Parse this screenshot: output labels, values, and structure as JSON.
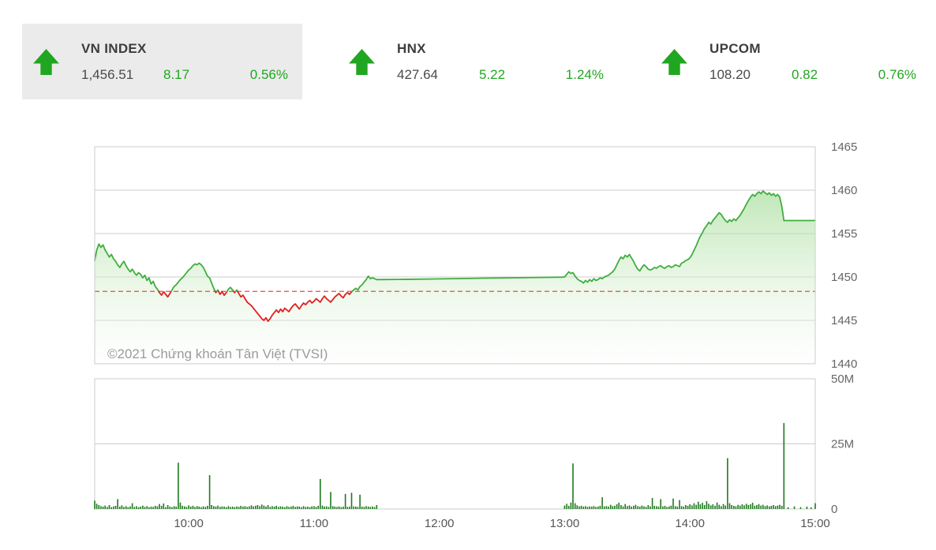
{
  "indices": [
    {
      "name": "VN INDEX",
      "value": "1,456.51",
      "change": "8.17",
      "percent": "0.56%",
      "highlighted": true
    },
    {
      "name": "HNX",
      "value": "427.64",
      "change": "5.22",
      "percent": "1.24%",
      "highlighted": false
    },
    {
      "name": "UPCOM",
      "value": "108.20",
      "change": "0.82",
      "percent": "0.76%",
      "highlighted": false
    }
  ],
  "watermark": "©2021 Chứng khoán Tân Việt (TVSI)",
  "colors": {
    "up_green": "#21a621",
    "arrow_green": "#25b125",
    "card_bg": "#ebebeb",
    "line_green": "#3fae3f",
    "line_red": "#e02020",
    "ref_red": "#e0504a",
    "vol_green": "#1e7a1e",
    "grid": "#cccccc",
    "axis_text": "#666666",
    "x_axis_text": "#555555",
    "watermark_text": "#9b9b9b",
    "fill_top": "#8fd47f",
    "fill_bottom": "#ffffff"
  },
  "chart_data": {
    "type": "area",
    "title": "VN INDEX intraday price and volume",
    "x_axis": {
      "domain": [
        555,
        900
      ],
      "ticks": [
        {
          "t": 600,
          "label": "10:00"
        },
        {
          "t": 660,
          "label": "11:00"
        },
        {
          "t": 720,
          "label": "12:00"
        },
        {
          "t": 780,
          "label": "13:00"
        },
        {
          "t": 840,
          "label": "14:00"
        },
        {
          "t": 900,
          "label": "15:00"
        }
      ]
    },
    "price_axis": {
      "domain": [
        1440,
        1465
      ],
      "ticks": [
        1465,
        1460,
        1455,
        1450,
        1445,
        1440
      ]
    },
    "volume_axis": {
      "domain": [
        0,
        50
      ],
      "ticks": [
        {
          "v": 50,
          "label": "50M"
        },
        {
          "v": 25,
          "label": "25M"
        },
        {
          "v": 0,
          "label": "0"
        }
      ]
    },
    "reference_value": 1448.34,
    "close_value": 1456.51,
    "points": [
      [
        555,
        1451.9,
        3.2
      ],
      [
        556,
        1453.1,
        2.0
      ],
      [
        557,
        1453.8,
        1.5
      ],
      [
        558,
        1453.4,
        1.1
      ],
      [
        559,
        1453.7,
        0.9
      ],
      [
        560,
        1453.1,
        1.3
      ],
      [
        561,
        1452.7,
        0.8
      ],
      [
        562,
        1452.3,
        1.5
      ],
      [
        563,
        1452.6,
        0.7
      ],
      [
        564,
        1452.1,
        1.0
      ],
      [
        565,
        1451.8,
        1.2
      ],
      [
        566,
        1451.4,
        3.8
      ],
      [
        567,
        1451.1,
        0.9
      ],
      [
        568,
        1451.5,
        1.4
      ],
      [
        569,
        1451.8,
        0.8
      ],
      [
        570,
        1451.3,
        1.1
      ],
      [
        571,
        1450.9,
        0.7
      ],
      [
        572,
        1450.6,
        1.0
      ],
      [
        573,
        1450.9,
        2.2
      ],
      [
        574,
        1450.5,
        0.8
      ],
      [
        575,
        1450.2,
        1.1
      ],
      [
        576,
        1450.5,
        0.7
      ],
      [
        577,
        1450.3,
        0.9
      ],
      [
        578,
        1449.9,
        1.3
      ],
      [
        579,
        1450.2,
        0.8
      ],
      [
        580,
        1449.6,
        1.1
      ],
      [
        581,
        1449.9,
        0.7
      ],
      [
        582,
        1449.2,
        0.9
      ],
      [
        583,
        1449.5,
        0.8
      ],
      [
        584,
        1448.9,
        1.2
      ],
      [
        585,
        1448.6,
        1.0
      ],
      [
        586,
        1448.2,
        1.9
      ],
      [
        587,
        1447.9,
        1.2
      ],
      [
        588,
        1448.3,
        2.1
      ],
      [
        589,
        1448.0,
        0.7
      ],
      [
        590,
        1447.7,
        1.5
      ],
      [
        591,
        1448.1,
        0.9
      ],
      [
        592,
        1448.5,
        0.7
      ],
      [
        593,
        1448.9,
        1.1
      ],
      [
        594,
        1449.1,
        0.9
      ],
      [
        595,
        1449.4,
        17.8
      ],
      [
        596,
        1449.7,
        2.5
      ],
      [
        597,
        1449.9,
        1.2
      ],
      [
        598,
        1450.2,
        1.0
      ],
      [
        599,
        1450.5,
        0.8
      ],
      [
        600,
        1450.8,
        1.4
      ],
      [
        601,
        1451.0,
        0.9
      ],
      [
        602,
        1451.3,
        1.2
      ],
      [
        603,
        1451.5,
        0.8
      ],
      [
        604,
        1451.4,
        1.1
      ],
      [
        605,
        1451.6,
        0.9
      ],
      [
        606,
        1451.4,
        0.7
      ],
      [
        607,
        1451.1,
        1.0
      ],
      [
        608,
        1450.6,
        0.8
      ],
      [
        609,
        1450.1,
        1.2
      ],
      [
        610,
        1449.9,
        13.0
      ],
      [
        611,
        1449.3,
        1.5
      ],
      [
        612,
        1448.7,
        1.1
      ],
      [
        613,
        1448.2,
        0.9
      ],
      [
        614,
        1448.5,
        1.3
      ],
      [
        615,
        1448.0,
        0.8
      ],
      [
        616,
        1448.3,
        1.0
      ],
      [
        617,
        1447.9,
        0.9
      ],
      [
        618,
        1448.2,
        0.7
      ],
      [
        619,
        1448.6,
        1.1
      ],
      [
        620,
        1448.8,
        0.8
      ],
      [
        621,
        1448.5,
        0.9
      ],
      [
        622,
        1448.2,
        0.7
      ],
      [
        623,
        1448.5,
        1.0
      ],
      [
        624,
        1448.1,
        0.8
      ],
      [
        625,
        1447.7,
        1.2
      ],
      [
        626,
        1447.9,
        0.9
      ],
      [
        627,
        1447.5,
        1.1
      ],
      [
        628,
        1447.1,
        0.8
      ],
      [
        629,
        1446.9,
        1.0
      ],
      [
        630,
        1446.7,
        1.4
      ],
      [
        631,
        1446.4,
        1.0
      ],
      [
        632,
        1446.1,
        1.2
      ],
      [
        633,
        1445.8,
        1.5
      ],
      [
        634,
        1445.5,
        1.1
      ],
      [
        635,
        1445.2,
        1.7
      ],
      [
        636,
        1445.0,
        1.3
      ],
      [
        637,
        1445.3,
        0.9
      ],
      [
        638,
        1444.9,
        1.5
      ],
      [
        639,
        1445.2,
        0.8
      ],
      [
        640,
        1445.6,
        1.1
      ],
      [
        641,
        1445.9,
        0.9
      ],
      [
        642,
        1446.2,
        1.2
      ],
      [
        643,
        1445.9,
        0.8
      ],
      [
        644,
        1446.3,
        1.0
      ],
      [
        645,
        1446.0,
        0.9
      ],
      [
        646,
        1446.4,
        0.7
      ],
      [
        647,
        1446.2,
        1.1
      ],
      [
        648,
        1446.0,
        0.8
      ],
      [
        649,
        1446.4,
        0.9
      ],
      [
        650,
        1446.7,
        1.2
      ],
      [
        651,
        1446.9,
        0.8
      ],
      [
        652,
        1446.6,
        1.0
      ],
      [
        653,
        1446.3,
        0.9
      ],
      [
        654,
        1446.7,
        0.7
      ],
      [
        655,
        1447.0,
        1.1
      ],
      [
        656,
        1446.8,
        0.8
      ],
      [
        657,
        1447.1,
        0.9
      ],
      [
        658,
        1447.3,
        0.7
      ],
      [
        659,
        1447.0,
        1.0
      ],
      [
        660,
        1447.2,
        1.1
      ],
      [
        661,
        1447.5,
        0.8
      ],
      [
        662,
        1447.3,
        1.2
      ],
      [
        663,
        1447.1,
        11.5
      ],
      [
        664,
        1447.5,
        1.3
      ],
      [
        665,
        1447.8,
        0.9
      ],
      [
        666,
        1447.5,
        1.0
      ],
      [
        667,
        1447.3,
        0.8
      ],
      [
        668,
        1447.1,
        6.5
      ],
      [
        669,
        1447.4,
        1.1
      ],
      [
        670,
        1447.7,
        0.9
      ],
      [
        671,
        1447.9,
        0.8
      ],
      [
        672,
        1448.1,
        1.0
      ],
      [
        673,
        1447.8,
        0.7
      ],
      [
        674,
        1447.6,
        0.9
      ],
      [
        675,
        1448.0,
        5.8
      ],
      [
        676,
        1448.2,
        0.8
      ],
      [
        677,
        1448.0,
        0.9
      ],
      [
        678,
        1448.3,
        6.2
      ],
      [
        679,
        1448.5,
        1.0
      ],
      [
        680,
        1448.7,
        0.9
      ],
      [
        681,
        1448.5,
        0.8
      ],
      [
        682,
        1448.9,
        5.5
      ],
      [
        683,
        1449.1,
        0.9
      ],
      [
        684,
        1449.4,
        0.8
      ],
      [
        685,
        1449.7,
        1.1
      ],
      [
        686,
        1450.1,
        0.9
      ],
      [
        687,
        1449.8,
        0.8
      ],
      [
        688,
        1449.9,
        1.0
      ],
      [
        689,
        1449.8,
        0.7
      ],
      [
        690,
        1449.7,
        1.5
      ],
      [
        700,
        1449.72,
        0
      ],
      [
        715,
        1449.76,
        0
      ],
      [
        730,
        1449.82,
        0
      ],
      [
        745,
        1449.87,
        0
      ],
      [
        760,
        1449.92,
        0
      ],
      [
        779,
        1449.98,
        0
      ],
      [
        780,
        1450.0,
        1.3
      ],
      [
        781,
        1450.3,
        2.0
      ],
      [
        782,
        1450.6,
        1.2
      ],
      [
        783,
        1450.4,
        2.5
      ],
      [
        784,
        1450.5,
        17.5
      ],
      [
        785,
        1450.1,
        2.2
      ],
      [
        786,
        1449.8,
        1.4
      ],
      [
        787,
        1449.6,
        1.0
      ],
      [
        788,
        1449.5,
        1.2
      ],
      [
        789,
        1449.3,
        0.9
      ],
      [
        790,
        1449.6,
        1.1
      ],
      [
        791,
        1449.4,
        0.8
      ],
      [
        792,
        1449.7,
        1.0
      ],
      [
        793,
        1449.5,
        0.9
      ],
      [
        794,
        1449.8,
        1.1
      ],
      [
        795,
        1449.6,
        0.8
      ],
      [
        796,
        1449.7,
        0.9
      ],
      [
        797,
        1449.9,
        1.2
      ],
      [
        798,
        1449.8,
        4.5
      ],
      [
        799,
        1450.0,
        1.0
      ],
      [
        800,
        1450.1,
        1.1
      ],
      [
        801,
        1450.2,
        0.9
      ],
      [
        802,
        1450.4,
        1.6
      ],
      [
        803,
        1450.6,
        1.1
      ],
      [
        804,
        1450.9,
        1.2
      ],
      [
        805,
        1451.4,
        1.8
      ],
      [
        806,
        1451.9,
        2.4
      ],
      [
        807,
        1452.3,
        1.5
      ],
      [
        808,
        1452.1,
        1.0
      ],
      [
        809,
        1452.5,
        1.9
      ],
      [
        810,
        1452.3,
        1.1
      ],
      [
        811,
        1452.6,
        1.4
      ],
      [
        812,
        1452.2,
        0.9
      ],
      [
        813,
        1451.8,
        1.2
      ],
      [
        814,
        1451.3,
        1.6
      ],
      [
        815,
        1450.9,
        1.1
      ],
      [
        816,
        1450.7,
        0.9
      ],
      [
        817,
        1451.1,
        1.3
      ],
      [
        818,
        1451.4,
        1.0
      ],
      [
        819,
        1451.2,
        0.8
      ],
      [
        820,
        1450.9,
        1.5
      ],
      [
        821,
        1450.8,
        1.0
      ],
      [
        822,
        1450.9,
        4.2
      ],
      [
        823,
        1451.1,
        1.2
      ],
      [
        824,
        1451.0,
        1.1
      ],
      [
        825,
        1451.2,
        0.9
      ],
      [
        826,
        1451.3,
        3.8
      ],
      [
        827,
        1451.1,
        1.0
      ],
      [
        828,
        1451.0,
        1.2
      ],
      [
        829,
        1451.2,
        0.8
      ],
      [
        830,
        1451.3,
        1.0
      ],
      [
        831,
        1451.1,
        1.3
      ],
      [
        832,
        1451.2,
        4.0
      ],
      [
        833,
        1451.4,
        1.1
      ],
      [
        834,
        1451.3,
        0.9
      ],
      [
        835,
        1451.2,
        3.4
      ],
      [
        836,
        1451.6,
        1.1
      ],
      [
        837,
        1451.7,
        0.9
      ],
      [
        838,
        1451.9,
        1.5
      ],
      [
        839,
        1452.0,
        1.2
      ],
      [
        840,
        1452.2,
        1.8
      ],
      [
        841,
        1452.6,
        1.4
      ],
      [
        842,
        1453.1,
        2.2
      ],
      [
        843,
        1453.6,
        1.6
      ],
      [
        844,
        1454.2,
        2.8
      ],
      [
        845,
        1454.7,
        1.8
      ],
      [
        846,
        1455.1,
        2.4
      ],
      [
        847,
        1455.6,
        1.5
      ],
      [
        848,
        1455.9,
        3.0
      ],
      [
        849,
        1456.3,
        2.0
      ],
      [
        850,
        1456.1,
        1.4
      ],
      [
        851,
        1456.5,
        1.8
      ],
      [
        852,
        1456.8,
        1.2
      ],
      [
        853,
        1457.1,
        2.5
      ],
      [
        854,
        1457.4,
        1.6
      ],
      [
        855,
        1457.2,
        1.1
      ],
      [
        856,
        1456.8,
        1.9
      ],
      [
        857,
        1456.5,
        1.3
      ],
      [
        858,
        1456.3,
        19.5
      ],
      [
        859,
        1456.6,
        2.2
      ],
      [
        860,
        1456.4,
        1.5
      ],
      [
        861,
        1456.7,
        1.2
      ],
      [
        862,
        1456.5,
        1.0
      ],
      [
        863,
        1456.8,
        1.6
      ],
      [
        864,
        1457.1,
        1.3
      ],
      [
        865,
        1457.5,
        1.8
      ],
      [
        866,
        1457.9,
        1.4
      ],
      [
        867,
        1458.4,
        2.0
      ],
      [
        868,
        1458.8,
        1.5
      ],
      [
        869,
        1459.2,
        1.8
      ],
      [
        870,
        1459.5,
        2.4
      ],
      [
        871,
        1459.3,
        1.2
      ],
      [
        872,
        1459.6,
        1.5
      ],
      [
        873,
        1459.8,
        1.9
      ],
      [
        874,
        1459.6,
        1.3
      ],
      [
        875,
        1459.9,
        1.6
      ],
      [
        876,
        1459.7,
        1.1
      ],
      [
        877,
        1459.5,
        1.4
      ],
      [
        878,
        1459.7,
        1.0
      ],
      [
        879,
        1459.4,
        1.2
      ],
      [
        880,
        1459.6,
        1.5
      ],
      [
        881,
        1459.3,
        1.1
      ],
      [
        882,
        1459.5,
        1.3
      ],
      [
        883,
        1459.2,
        1.6
      ],
      [
        884,
        1458.1,
        1.2
      ],
      [
        885,
        1456.5,
        33.0
      ],
      [
        887,
        1456.5,
        0.6
      ],
      [
        890,
        1456.5,
        1.0
      ],
      [
        893,
        1456.5,
        0.7
      ],
      [
        896,
        1456.5,
        0.9
      ],
      [
        898,
        1456.5,
        0.6
      ],
      [
        900,
        1456.51,
        2.2
      ]
    ]
  }
}
